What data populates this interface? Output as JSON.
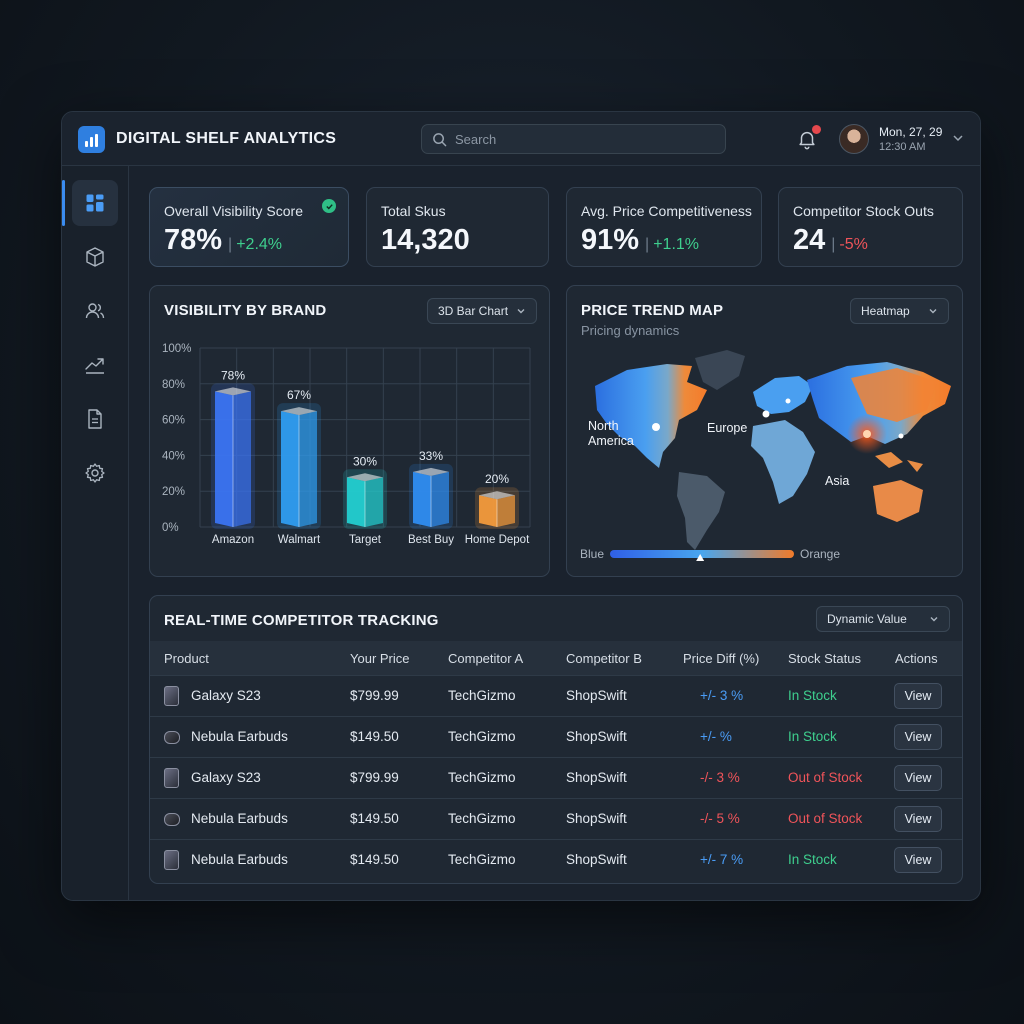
{
  "app": {
    "title": "DIGITAL SHELF ANALYTICS",
    "search_placeholder": "Search",
    "user": {
      "date": "Mon, 27, 29",
      "time": "12:30 AM"
    }
  },
  "sidebar": {
    "items": [
      {
        "icon": "dashboard-icon",
        "active": true
      },
      {
        "icon": "box-icon",
        "active": false
      },
      {
        "icon": "users-icon",
        "active": false
      },
      {
        "icon": "trend-icon",
        "active": false
      },
      {
        "icon": "document-icon",
        "active": false
      },
      {
        "icon": "gear-icon",
        "active": false
      }
    ]
  },
  "kpis": [
    {
      "label": "Overall Visibility Score",
      "value": "78%",
      "delta": "+2.4%",
      "positive": true
    },
    {
      "label": "Total Skus",
      "value": "14,320",
      "delta": "",
      "positive": true
    },
    {
      "label": "Avg. Price Competitiveness",
      "value": "91%",
      "delta": "+1.1%",
      "positive": true
    },
    {
      "label": "Competitor Stock Outs",
      "value": "24",
      "delta": "-5%",
      "positive": false
    }
  ],
  "visibility": {
    "title": "VISIBILITY BY BRAND",
    "dropdown": "3D Bar Chart"
  },
  "chart_data": {
    "type": "bar",
    "title": "VISIBILITY BY BRAND",
    "categories": [
      "Amazon",
      "Walmart",
      "Target",
      "Best Buy",
      "Home Depot"
    ],
    "values": [
      78,
      67,
      30,
      33,
      20
    ],
    "value_labels": [
      "78%",
      "67%",
      "30%",
      "33%",
      "20%"
    ],
    "yticks": [
      "0%",
      "20%",
      "40%",
      "60%",
      "80%",
      "100%"
    ],
    "ylim": [
      0,
      100
    ],
    "colors": [
      "#3b74f2",
      "#2f9cf0",
      "#23cfd0",
      "#2f8cf0",
      "#f39a3c"
    ]
  },
  "price_map": {
    "title": "PRICE TREND MAP",
    "subtitle": "Pricing dynamics",
    "dropdown": "Heatmap",
    "labels": {
      "north_america": "North\nAmerica",
      "europe": "Europe",
      "asia": "Asia"
    },
    "legend": {
      "low": "Blue",
      "high": "Orange",
      "marker_fraction": 0.49
    }
  },
  "tracking": {
    "title": "REAL-TIME COMPETITOR TRACKING",
    "dropdown": "Dynamic Value",
    "columns": [
      "Product",
      "Your Price",
      "Competitor A",
      "Competitor B",
      "Price Diff (%)",
      "Stock Status",
      "Actions"
    ],
    "rows": [
      {
        "product": "Galaxy S23",
        "type": "phone",
        "price": "$799.99",
        "comp_a": "TechGizmo",
        "comp_b": "ShopSwift",
        "diff": "+/- 3 %",
        "diff_positive": true,
        "status": "In Stock",
        "in_stock": true,
        "action": "View"
      },
      {
        "product": "Nebula Earbuds",
        "type": "buds",
        "price": "$149.50",
        "comp_a": "TechGizmo",
        "comp_b": "ShopSwift",
        "diff": "+/- %",
        "diff_positive": true,
        "status": "In Stock",
        "in_stock": true,
        "action": "View"
      },
      {
        "product": "Galaxy S23",
        "type": "phone",
        "price": "$799.99",
        "comp_a": "TechGizmo",
        "comp_b": "ShopSwift",
        "diff": "-/- 3 %",
        "diff_positive": false,
        "status": "Out of Stock",
        "in_stock": false,
        "action": "View"
      },
      {
        "product": "Nebula Earbuds",
        "type": "buds",
        "price": "$149.50",
        "comp_a": "TechGizmo",
        "comp_b": "ShopSwift",
        "diff": "-/- 5 %",
        "diff_positive": false,
        "status": "Out of Stock",
        "in_stock": false,
        "action": "View"
      },
      {
        "product": "Nebula Earbuds",
        "type": "phone",
        "price": "$149.50",
        "comp_a": "TechGizmo",
        "comp_b": "ShopSwift",
        "diff": "+/- 7 %",
        "diff_positive": true,
        "status": "In Stock",
        "in_stock": true,
        "action": "View"
      }
    ]
  }
}
